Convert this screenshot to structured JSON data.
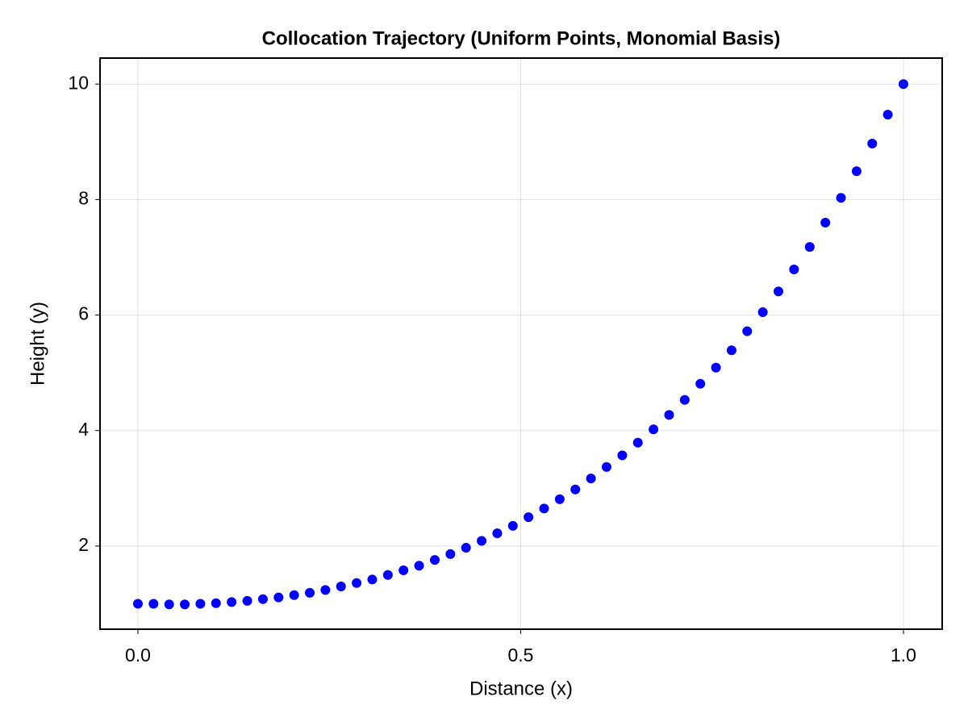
{
  "chart_data": {
    "type": "scatter",
    "title": "Collocation Trajectory (Uniform Points, Monomial Basis)",
    "x_label": "Distance (x)",
    "y_label": "Height (y)",
    "color": "#0000ff",
    "grid": true,
    "xlim": [
      -0.0495,
      1.0506
    ],
    "ylim": [
      0.56,
      10.45
    ],
    "xticks": [
      {
        "value": 0,
        "label": "0.0"
      },
      0.5,
      {
        "value": 1,
        "label": "1.0"
      }
    ],
    "yticks": [
      2,
      4,
      6,
      8,
      10
    ],
    "x": [
      0,
      0.0204,
      0.0408,
      0.0612,
      0.0816,
      0.102,
      0.1224,
      0.1429,
      0.1633,
      0.1837,
      0.2041,
      0.2245,
      0.2449,
      0.2653,
      0.2857,
      0.3061,
      0.3265,
      0.3469,
      0.3673,
      0.3878,
      0.4082,
      0.4286,
      0.449,
      0.4694,
      0.4898,
      0.5102,
      0.5306,
      0.551,
      0.5714,
      0.5918,
      0.6122,
      0.6327,
      0.6531,
      0.6735,
      0.6939,
      0.7143,
      0.7347,
      0.7551,
      0.7755,
      0.7959,
      0.8163,
      0.8367,
      0.8571,
      0.8776,
      0.898,
      0.9184,
      0.9388,
      0.9592,
      0.9796,
      1
    ],
    "values": [
      1.0,
      1.0,
      0.99,
      0.99,
      1.0,
      1.01,
      1.03,
      1.05,
      1.08,
      1.11,
      1.15,
      1.19,
      1.24,
      1.3,
      1.36,
      1.42,
      1.5,
      1.58,
      1.66,
      1.76,
      1.86,
      1.97,
      2.09,
      2.22,
      2.35,
      2.5,
      2.65,
      2.81,
      2.98,
      3.17,
      3.37,
      3.57,
      3.79,
      4.02,
      4.27,
      4.53,
      4.81,
      5.09,
      5.39,
      5.72,
      6.05,
      6.41,
      6.79,
      7.18,
      7.6,
      8.03,
      8.49,
      8.97,
      9.47,
      10.0
    ]
  }
}
